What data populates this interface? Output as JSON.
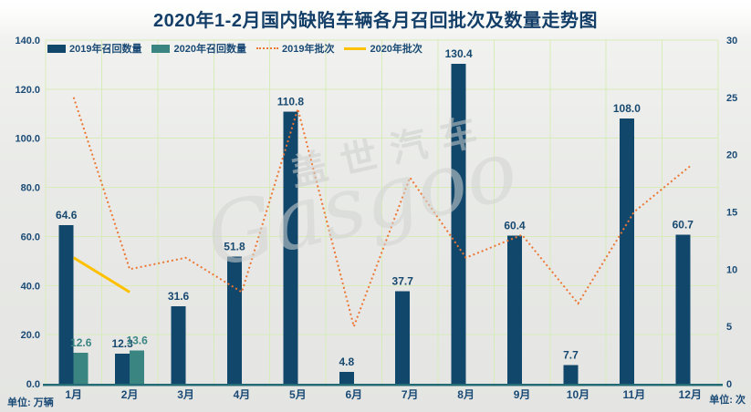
{
  "title": "2020年1-2月国内缺陷车辆各月召回批次及数量走势图",
  "units": {
    "left": "单位: 万辆",
    "right": "单位: 次"
  },
  "watermark": {
    "cn": "盖世汽车",
    "en": "Gasgoo"
  },
  "colors": {
    "bar_2019": "#12476c",
    "bar_2020": "#3a8582",
    "line_2019": "#ed7633",
    "line_2020": "#ffc000",
    "label_2019": "#17486f",
    "label_2020": "#3a8582",
    "axis_text": "#1a4a75",
    "grid": "#d7ecba",
    "baseline": "#256b76"
  },
  "legend": {
    "items": [
      {
        "label": "2019年召回数量"
      },
      {
        "label": "2020年召回数量"
      },
      {
        "label": "2019年批次"
      },
      {
        "label": "2020年批次"
      }
    ]
  },
  "chart_data": {
    "type": "bar",
    "subtype": "grouped-bar-with-lines",
    "categories": [
      "1月",
      "2月",
      "3月",
      "4月",
      "5月",
      "6月",
      "7月",
      "8月",
      "9月",
      "10月",
      "11月",
      "12月"
    ],
    "series": [
      {
        "name": "2019年召回数量",
        "type": "bar",
        "axis": "left",
        "values": [
          64.6,
          12.3,
          31.6,
          51.8,
          110.8,
          4.8,
          37.7,
          130.4,
          60.4,
          7.7,
          108.0,
          60.7
        ],
        "labels": [
          "64.6",
          "12.3",
          "31.6",
          "51.8",
          "110.8",
          "4.8",
          "37.7",
          "130.4",
          "60.4",
          "7.7",
          "108.0",
          "60.7"
        ]
      },
      {
        "name": "2020年召回数量",
        "type": "bar",
        "axis": "left",
        "values": [
          12.6,
          13.6,
          null,
          null,
          null,
          null,
          null,
          null,
          null,
          null,
          null,
          null
        ],
        "labels": [
          "12.6",
          "13.6",
          null,
          null,
          null,
          null,
          null,
          null,
          null,
          null,
          null,
          null
        ]
      },
      {
        "name": "2019年批次",
        "type": "line",
        "line_style": "dotted",
        "axis": "right",
        "values": [
          25,
          10,
          11,
          8,
          24,
          5,
          18,
          11,
          13,
          7,
          15,
          19
        ]
      },
      {
        "name": "2020年批次",
        "type": "line",
        "line_style": "solid",
        "axis": "right",
        "values": [
          11,
          8,
          null,
          null,
          null,
          null,
          null,
          null,
          null,
          null,
          null,
          null
        ]
      }
    ],
    "left_axis": {
      "label": "单位: 万辆",
      "min": 0,
      "max": 140,
      "step": 20,
      "ticks": [
        "0.0",
        "20.0",
        "40.0",
        "60.0",
        "80.0",
        "100.0",
        "120.0",
        "140.0"
      ]
    },
    "right_axis": {
      "label": "单位: 次",
      "min": 0,
      "max": 30,
      "step": 5,
      "ticks": [
        "0",
        "5",
        "10",
        "15",
        "20",
        "25",
        "30"
      ]
    },
    "grid": true,
    "legend_position": "top-left"
  }
}
